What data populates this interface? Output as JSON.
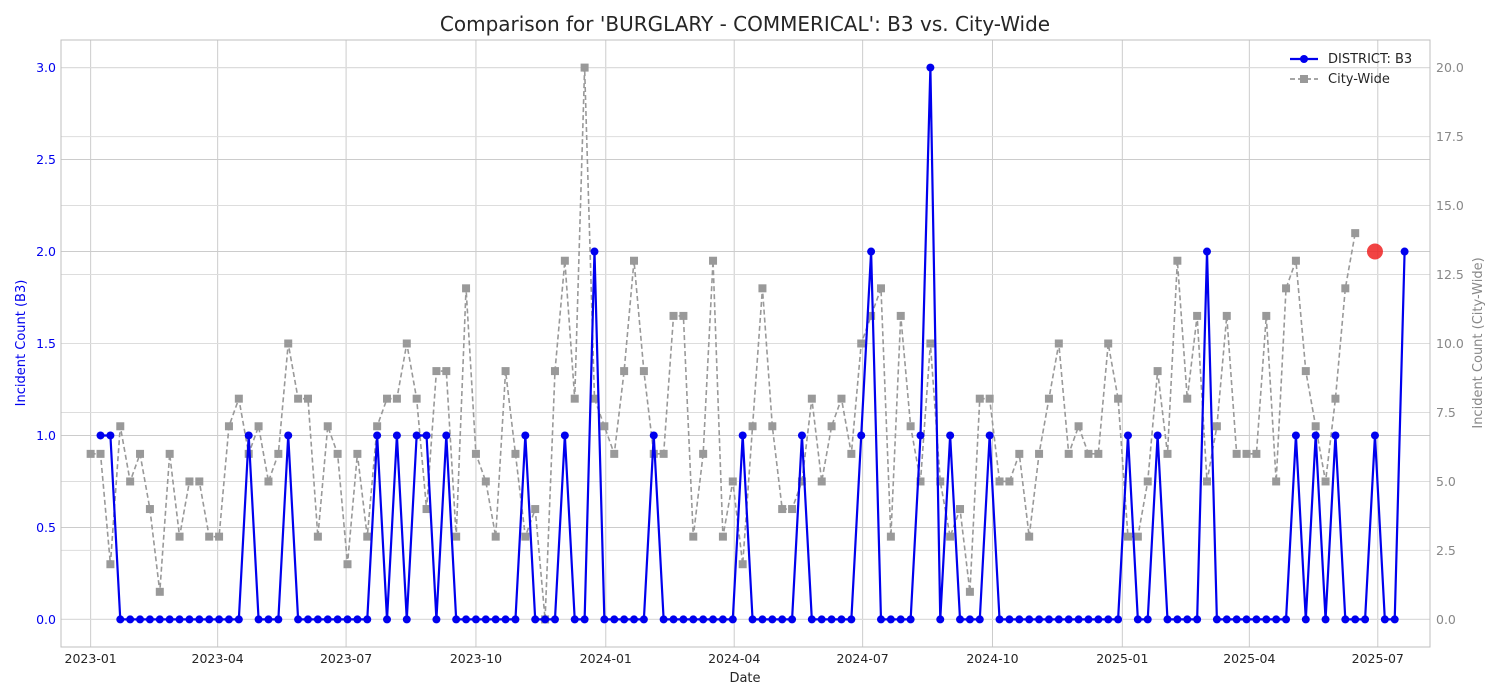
{
  "chart_data": {
    "type": "line",
    "title": "Comparison for 'BURGLARY - COMMERICAL': B3 vs. City-Wide",
    "xlabel": "Date",
    "ylabel_left": "Incident Count (B3)",
    "ylabel_right": "Incident Count (City-Wide)",
    "x_tick_labels": [
      "2023-01",
      "2023-04",
      "2023-07",
      "2023-10",
      "2024-01",
      "2024-04",
      "2024-07",
      "2024-10",
      "2025-01",
      "2025-04",
      "2025-07"
    ],
    "x_range": [
      "2022-12-11",
      "2025-08-07"
    ],
    "ylim_left": [
      -0.15,
      3.15
    ],
    "ylim_right": [
      -1.0,
      21.0
    ],
    "y_ticks_left": [
      0.0,
      0.5,
      1.0,
      1.5,
      2.0,
      2.5,
      3.0
    ],
    "y_ticks_right": [
      0.0,
      2.5,
      5.0,
      7.5,
      10.0,
      12.5,
      15.0,
      17.5,
      20.0
    ],
    "grid": true,
    "legend_position": "top-right",
    "first_week": "2023-01-01",
    "series": [
      {
        "name": "DISTRICT: B3",
        "axis": "left",
        "color": "#0000ee",
        "style": "solid",
        "marker": "circle",
        "values": [
          null,
          1,
          1,
          0,
          0,
          0,
          0,
          0,
          0,
          0,
          0,
          0,
          0,
          0,
          0,
          0,
          1,
          0,
          0,
          0,
          1,
          0,
          0,
          0,
          0,
          0,
          0,
          0,
          0,
          1,
          0,
          1,
          0,
          1,
          1,
          0,
          1,
          0,
          0,
          0,
          0,
          0,
          0,
          0,
          1,
          0,
          0,
          0,
          1,
          0,
          0,
          2,
          0,
          0,
          0,
          0,
          0,
          1,
          0,
          0,
          0,
          0,
          0,
          0,
          0,
          0,
          1,
          0,
          0,
          0,
          0,
          0,
          1,
          0,
          0,
          0,
          0,
          0,
          1,
          2,
          0,
          0,
          0,
          0,
          1,
          3,
          0,
          1,
          0,
          0,
          0,
          1,
          0,
          0,
          0,
          0,
          0,
          0,
          0,
          0,
          0,
          0,
          0,
          0,
          0,
          1,
          0,
          0,
          1,
          0,
          0,
          0,
          0,
          2,
          0,
          0,
          0,
          0,
          0,
          0,
          0,
          0,
          1,
          0,
          1,
          0,
          1,
          0,
          0,
          0,
          1,
          0,
          0,
          2
        ]
      },
      {
        "name": "City-Wide",
        "axis": "right",
        "color": "#999999",
        "style": "dashed",
        "marker": "square",
        "values": [
          6,
          6,
          2,
          7,
          5,
          6,
          4,
          1,
          6,
          3,
          5,
          5,
          3,
          3,
          7,
          8,
          6,
          7,
          5,
          6,
          10,
          8,
          8,
          3,
          7,
          6,
          2,
          6,
          3,
          7,
          8,
          8,
          10,
          8,
          4,
          9,
          9,
          3,
          12,
          6,
          5,
          3,
          9,
          6,
          3,
          4,
          0,
          9,
          13,
          8,
          20,
          8,
          7,
          6,
          9,
          13,
          9,
          6,
          6,
          11,
          11,
          3,
          6,
          13,
          3,
          5,
          2,
          7,
          12,
          7,
          4,
          4,
          5,
          8,
          5,
          7,
          8,
          6,
          10,
          11,
          12,
          3,
          11,
          7,
          5,
          10,
          5,
          3,
          4,
          1,
          8,
          8,
          5,
          5,
          6,
          3,
          6,
          8,
          10,
          6,
          7,
          6,
          6,
          10,
          8,
          3,
          3,
          5,
          9,
          6,
          13,
          8,
          11,
          5,
          7,
          11,
          6,
          6,
          6,
          11,
          5,
          12,
          13,
          9,
          7,
          5,
          8,
          12,
          14
        ]
      }
    ],
    "highlight": {
      "series": "DISTRICT: B3",
      "date": "2025-06-29",
      "value": 2,
      "color": "#ee2222"
    }
  }
}
